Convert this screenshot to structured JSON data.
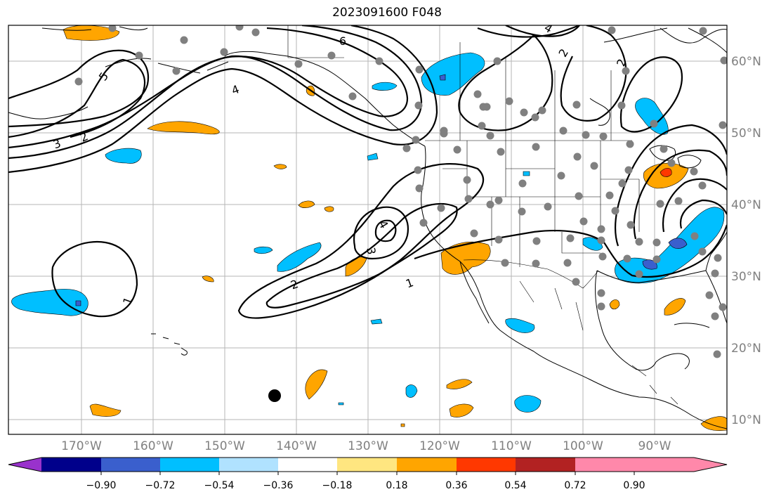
{
  "title": "2023091600 F048",
  "lon_labels": [
    "170°W",
    "160°W",
    "150°W",
    "140°W",
    "130°W",
    "120°W",
    "110°W",
    "100°W",
    "90°W"
  ],
  "lat_labels": [
    "60°N",
    "50°N",
    "40°N",
    "30°N",
    "20°N",
    "10°N"
  ],
  "contour_labels": [
    "6",
    "5",
    "4",
    "3",
    "2",
    "4",
    "3",
    "2",
    "1",
    "1",
    "4",
    "2",
    "2"
  ],
  "colorbar": {
    "tick_labels": [
      "−0.90",
      "−0.72",
      "−0.54",
      "−0.36",
      "−0.18",
      "0.18",
      "0.36",
      "0.54",
      "0.72",
      "0.90"
    ],
    "colors": [
      "#9932CC",
      "#00008B",
      "#3A5FCD",
      "#00BFFF",
      "#B0E2FF",
      "#FFFFFF",
      "#FFE680",
      "#FFA500",
      "#FF3800",
      "#B22222",
      "#FF88AA"
    ]
  }
}
